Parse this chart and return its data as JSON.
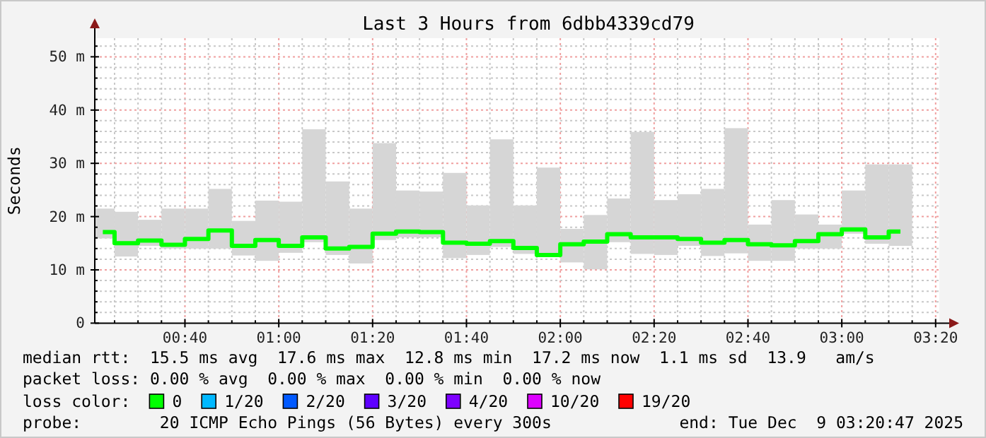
{
  "chart_data": {
    "type": "step",
    "title": "Last 3 Hours from 6dbb4339cd79",
    "ylabel": "Seconds",
    "legend_title": "loss color:",
    "legend": "bottom",
    "grid": true,
    "annotations": [
      "median rtt:  15.5 ms avg  17.6 ms max  12.8 ms min  17.2 ms now  1.1 ms sd  13.9   am/s",
      "packet loss: 0.00 % avg  0.00 % max  0.00 % min  0.00 % now",
      "probe:        20 ICMP Echo Pings (56 Bytes) every 300s",
      "end: Tue Dec  9 03:20:47 2025"
    ],
    "xlim": [
      0.3464,
      3.3464
    ],
    "ylim": [
      0,
      53.5
    ],
    "xticks": [
      {
        "value": 0.4167,
        "label": null
      },
      {
        "value": 0.5,
        "label": null
      },
      {
        "value": 0.5833,
        "label": null
      },
      {
        "value": 0.6667,
        "label": "00:40"
      },
      {
        "value": 0.75,
        "label": null
      },
      {
        "value": 0.8333,
        "label": null
      },
      {
        "value": 0.9167,
        "label": null
      },
      {
        "value": 1,
        "label": "01:00"
      },
      {
        "value": 1.0833,
        "label": null
      },
      {
        "value": 1.1667,
        "label": null
      },
      {
        "value": 1.25,
        "label": null
      },
      {
        "value": 1.3333,
        "label": "01:20"
      },
      {
        "value": 1.4167,
        "label": null
      },
      {
        "value": 1.5,
        "label": null
      },
      {
        "value": 1.5833,
        "label": null
      },
      {
        "value": 1.6667,
        "label": "01:40"
      },
      {
        "value": 1.75,
        "label": null
      },
      {
        "value": 1.8333,
        "label": null
      },
      {
        "value": 1.9167,
        "label": null
      },
      {
        "value": 2,
        "label": "02:00"
      },
      {
        "value": 2.0833,
        "label": null
      },
      {
        "value": 2.1667,
        "label": null
      },
      {
        "value": 2.25,
        "label": null
      },
      {
        "value": 2.3333,
        "label": "02:20"
      },
      {
        "value": 2.4167,
        "label": null
      },
      {
        "value": 2.5,
        "label": null
      },
      {
        "value": 2.5833,
        "label": null
      },
      {
        "value": 2.6667,
        "label": "02:40"
      },
      {
        "value": 2.75,
        "label": null
      },
      {
        "value": 2.8333,
        "label": null
      },
      {
        "value": 2.9167,
        "label": null
      },
      {
        "value": 3,
        "label": "03:00"
      },
      {
        "value": 3.0833,
        "label": null
      },
      {
        "value": 3.1667,
        "label": null
      },
      {
        "value": 3.25,
        "label": null
      },
      {
        "value": 3.3333,
        "label": "03:20"
      }
    ],
    "yticks": [
      0,
      {
        "value": 2,
        "label": null
      },
      {
        "value": 4,
        "label": null
      },
      {
        "value": 6,
        "label": null
      },
      {
        "value": 8,
        "label": null
      },
      {
        "value": 10,
        "label": "10 m"
      },
      {
        "value": 12,
        "label": null
      },
      {
        "value": 14,
        "label": null
      },
      {
        "value": 16,
        "label": null
      },
      {
        "value": 18,
        "label": null
      },
      {
        "value": 20,
        "label": "20 m"
      },
      {
        "value": 22,
        "label": null
      },
      {
        "value": 24,
        "label": null
      },
      {
        "value": 26,
        "label": null
      },
      {
        "value": 28,
        "label": null
      },
      {
        "value": 30,
        "label": "30 m"
      },
      {
        "value": 32,
        "label": null
      },
      {
        "value": 34,
        "label": null
      },
      {
        "value": 36,
        "label": null
      },
      {
        "value": 38,
        "label": null
      },
      {
        "value": 40,
        "label": "40 m"
      },
      {
        "value": 42,
        "label": null
      },
      {
        "value": 44,
        "label": null
      },
      {
        "value": 46,
        "label": null
      },
      {
        "value": 48,
        "label": null
      },
      {
        "value": 50,
        "label": "50 m"
      },
      {
        "value": 52,
        "label": null
      }
    ],
    "x": [
      0.375,
      0.4583,
      0.5417,
      0.625,
      0.7083,
      0.7917,
      0.875,
      0.9583,
      1.0417,
      1.125,
      1.2083,
      1.2917,
      1.375,
      1.4583,
      1.5417,
      1.625,
      1.7083,
      1.7917,
      1.875,
      1.9583,
      2.0417,
      2.125,
      2.2083,
      2.2917,
      2.375,
      2.4583,
      2.5417,
      2.625,
      2.7083,
      2.7917,
      2.875,
      2.9583,
      3.0417,
      3.125,
      3.2083
    ],
    "series": [
      {
        "type": "bar",
        "color": "#d6d6d6",
        "base": [
          15.9,
          12.5,
          14.5,
          14.0,
          14.0,
          14.0,
          12.7,
          11.7,
          13.2,
          15.2,
          12.8,
          11.2,
          15.6,
          16.1,
          16.1,
          12.2,
          12.8,
          14.3,
          13.0,
          12.5,
          11.4,
          10.1,
          15.2,
          13.0,
          12.8,
          14.5,
          12.6,
          13.1,
          11.7,
          11.7,
          14.0,
          14.0,
          16.8,
          14.9,
          14.5
        ],
        "values": [
          5.6,
          8.4,
          4.9,
          7.5,
          7.5,
          11.2,
          6.5,
          11.3,
          9.6,
          21.2,
          13.8,
          10.3,
          18.2,
          8.8,
          8.6,
          16.0,
          9.3,
          20.2,
          9.1,
          16.7,
          6.3,
          10.2,
          8.2,
          22.9,
          10.3,
          9.7,
          12.6,
          23.5,
          6.8,
          11.4,
          6.4,
          4.5,
          8.1,
          14.9,
          15.3
        ]
      },
      {
        "name": "0",
        "color": "#00ff00",
        "values": [
          17.1,
          15.0,
          15.5,
          14.7,
          15.8,
          17.4,
          14.5,
          15.6,
          14.5,
          16.1,
          14.0,
          14.3,
          16.8,
          17.2,
          17.1,
          15.1,
          14.9,
          15.4,
          14.1,
          12.8,
          14.8,
          15.3,
          16.7,
          16.1,
          16.1,
          15.8,
          15.1,
          15.6,
          14.8,
          14.6,
          15.4,
          16.7,
          17.6,
          16.1,
          17.2
        ]
      },
      {
        "name": "1/20",
        "color": "#00b8ff",
        "values": [
          null,
          null,
          null,
          null,
          null,
          null,
          null,
          null,
          null,
          null,
          null,
          null,
          null,
          null,
          null,
          null,
          null,
          null,
          null,
          null,
          null,
          null,
          null,
          null,
          null,
          null,
          null,
          null,
          null,
          null,
          null,
          null,
          null,
          null,
          null
        ]
      },
      {
        "name": "2/20",
        "color": "#0059ff",
        "values": [
          null,
          null,
          null,
          null,
          null,
          null,
          null,
          null,
          null,
          null,
          null,
          null,
          null,
          null,
          null,
          null,
          null,
          null,
          null,
          null,
          null,
          null,
          null,
          null,
          null,
          null,
          null,
          null,
          null,
          null,
          null,
          null,
          null,
          null,
          null
        ]
      },
      {
        "name": "3/20",
        "color": "#5e00ff",
        "values": [
          null,
          null,
          null,
          null,
          null,
          null,
          null,
          null,
          null,
          null,
          null,
          null,
          null,
          null,
          null,
          null,
          null,
          null,
          null,
          null,
          null,
          null,
          null,
          null,
          null,
          null,
          null,
          null,
          null,
          null,
          null,
          null,
          null,
          null,
          null
        ]
      },
      {
        "name": "4/20",
        "color": "#7e00ff",
        "values": [
          null,
          null,
          null,
          null,
          null,
          null,
          null,
          null,
          null,
          null,
          null,
          null,
          null,
          null,
          null,
          null,
          null,
          null,
          null,
          null,
          null,
          null,
          null,
          null,
          null,
          null,
          null,
          null,
          null,
          null,
          null,
          null,
          null,
          null,
          null
        ]
      },
      {
        "name": "10/20",
        "color": "#dd00ff",
        "values": [
          null,
          null,
          null,
          null,
          null,
          null,
          null,
          null,
          null,
          null,
          null,
          null,
          null,
          null,
          null,
          null,
          null,
          null,
          null,
          null,
          null,
          null,
          null,
          null,
          null,
          null,
          null,
          null,
          null,
          null,
          null,
          null,
          null,
          null,
          null
        ]
      },
      {
        "name": "19/20",
        "color": "#ff0000",
        "values": [
          null,
          null,
          null,
          null,
          null,
          null,
          null,
          null,
          null,
          null,
          null,
          null,
          null,
          null,
          null,
          null,
          null,
          null,
          null,
          null,
          null,
          null,
          null,
          null,
          null,
          null,
          null,
          null,
          null,
          null,
          null,
          null,
          null,
          null,
          null
        ]
      }
    ]
  }
}
